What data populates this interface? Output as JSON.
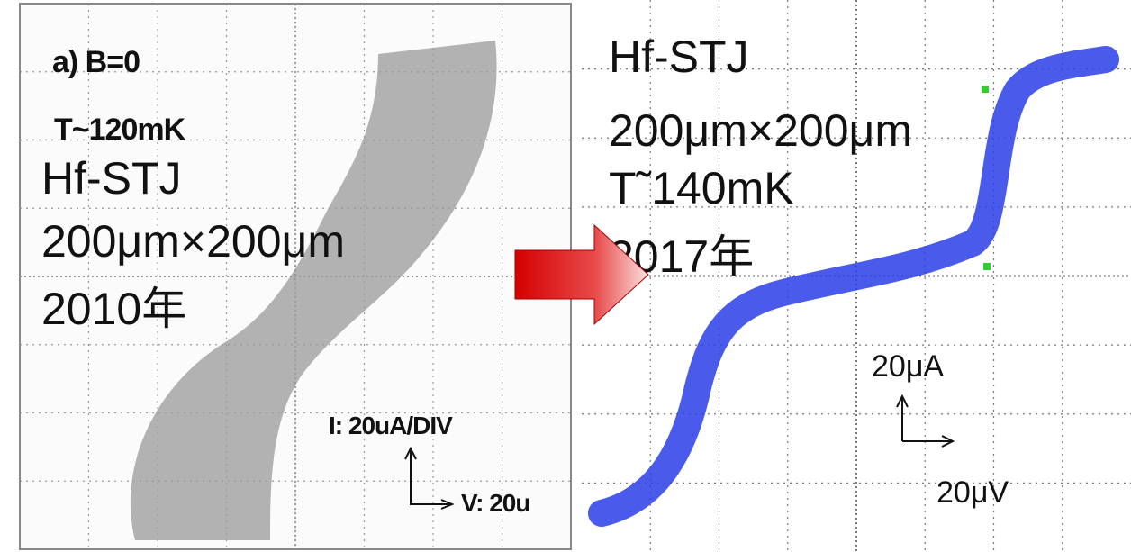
{
  "left_panel": {
    "label": "a) B=0",
    "temperature": "T~120mK",
    "device": "Hf-STJ",
    "size": "200μm×200μm",
    "year": "2010年",
    "current_scale": "I: 20uA/DIV",
    "voltage_scale": "V: 20u"
  },
  "right_panel": {
    "device": "Hf-STJ",
    "size": "200μm×200μm",
    "temperature": "T˜140mK",
    "year": "2017年",
    "current_scale": "20μA",
    "voltage_scale": "20μV"
  }
}
